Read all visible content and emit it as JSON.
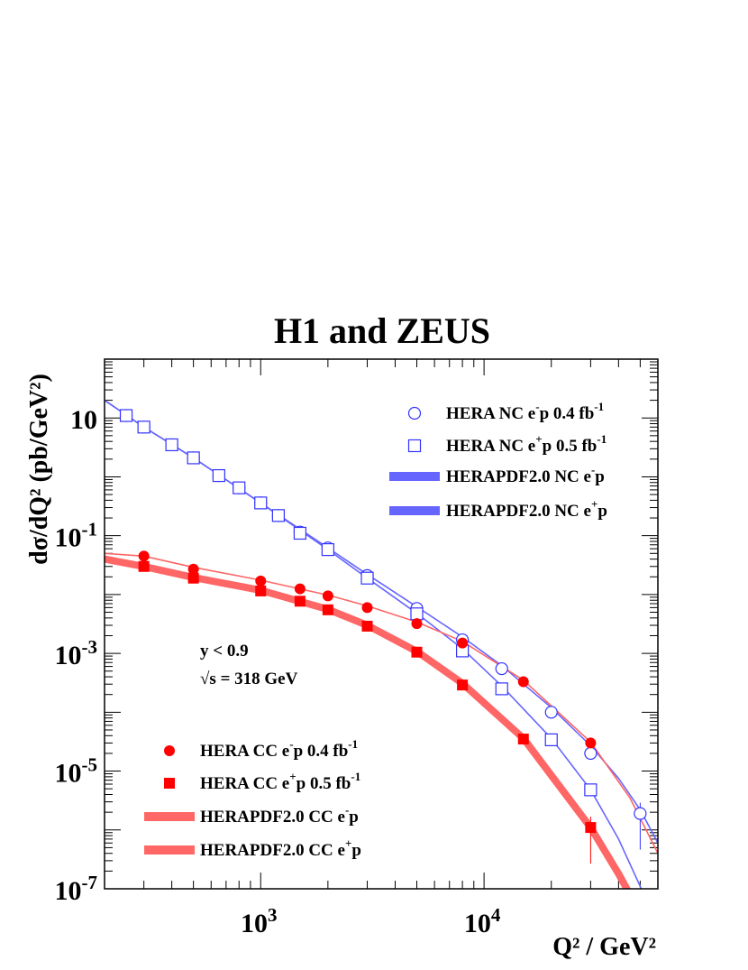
{
  "chart_data": {
    "type": "scatter",
    "title": "H1 and ZEUS",
    "xlabel": "Q² / GeV²",
    "ylabel": "dσ/dQ² (pb/GeV²)",
    "xscale": "log",
    "yscale": "log",
    "xlim": [
      200,
      60000
    ],
    "ylim": [
      1e-07,
      100
    ],
    "x_ticks": [
      {
        "value": 1000,
        "base": "10",
        "exp": "3"
      },
      {
        "value": 10000,
        "base": "10",
        "exp": "4"
      }
    ],
    "y_ticks": [
      {
        "value": 10,
        "base": "10",
        "exp": ""
      },
      {
        "value": 0.1,
        "base": "10",
        "exp": "-1"
      },
      {
        "value": 0.001,
        "base": "10",
        "exp": "-3"
      },
      {
        "value": 1e-05,
        "base": "10",
        "exp": "-5"
      },
      {
        "value": 1e-07,
        "base": "10",
        "exp": "-7"
      }
    ],
    "annotations": [
      {
        "text": "y < 0.9"
      },
      {
        "text": "√s = 318 GeV"
      }
    ],
    "legend_placement": [
      "top-right",
      "bottom-left"
    ],
    "colors": {
      "nc": "#3333ff",
      "nc_band": "#6666ff",
      "cc": "#ff0000",
      "cc_band": "#ff6666"
    },
    "series": [
      {
        "name": "HERA NC e⁻p 0.4 fb⁻¹",
        "legend": {
          "pre": "HERA NC e",
          "sup1": "-",
          "mid": "p 0.4 fb",
          "sup2": "-1"
        },
        "marker": "open-circle",
        "color": "#3333ff",
        "x": [
          250,
          300,
          400,
          500,
          650,
          800,
          1000,
          1200,
          1500,
          2000,
          3000,
          5000,
          8000,
          12000,
          20000,
          30000,
          50000
        ],
        "y": [
          11,
          7,
          3.5,
          2.1,
          1.05,
          0.65,
          0.36,
          0.22,
          0.115,
          0.062,
          0.021,
          0.0058,
          0.0017,
          0.00055,
          0.0001,
          2e-05,
          1.9e-06
        ]
      },
      {
        "name": "HERA NC e⁺p 0.5 fb⁻¹",
        "legend": {
          "pre": "HERA NC e",
          "sup1": "+",
          "mid": "p 0.5 fb",
          "sup2": "-1"
        },
        "marker": "open-square",
        "color": "#3333ff",
        "x": [
          250,
          300,
          400,
          500,
          650,
          800,
          1000,
          1200,
          1500,
          2000,
          3000,
          5000,
          8000,
          12000,
          20000,
          30000
        ],
        "y": [
          11,
          7,
          3.5,
          2.1,
          1.05,
          0.65,
          0.36,
          0.22,
          0.11,
          0.058,
          0.019,
          0.0047,
          0.0011,
          0.00025,
          3.4e-05,
          4.8e-06
        ]
      },
      {
        "name": "HERAPDF2.0 NC e⁻p",
        "legend": {
          "pre": "HERAPDF2.0 NC e",
          "sup1": "-",
          "mid": "p",
          "sup2": ""
        },
        "marker": "band",
        "color": "#6666ff",
        "x": [
          200,
          300,
          500,
          1000,
          2000,
          3000,
          5000,
          8000,
          12000,
          20000,
          30000,
          40000,
          50000,
          60000
        ],
        "y": [
          20,
          7,
          2.1,
          0.36,
          0.062,
          0.022,
          0.0062,
          0.0019,
          0.00062,
          0.00012,
          2.7e-05,
          7.5e-06,
          2.2e-06,
          6e-07
        ]
      },
      {
        "name": "HERAPDF2.0 NC e⁺p",
        "legend": {
          "pre": "HERAPDF2.0 NC e",
          "sup1": "+",
          "mid": "p",
          "sup2": ""
        },
        "marker": "band",
        "color": "#6666ff",
        "x": [
          200,
          300,
          500,
          1000,
          2000,
          3000,
          5000,
          8000,
          12000,
          20000,
          30000,
          40000,
          50000,
          55000
        ],
        "y": [
          20,
          7,
          2.1,
          0.36,
          0.058,
          0.019,
          0.0048,
          0.0012,
          0.00028,
          3.6e-05,
          4.8e-06,
          7e-07,
          1.1e-07,
          4e-08
        ]
      },
      {
        "name": "HERA CC e⁻p 0.4 fb⁻¹",
        "legend": {
          "pre": "HERA CC e",
          "sup1": "-",
          "mid": "p 0.4 fb",
          "sup2": "-1"
        },
        "marker": "filled-circle",
        "color": "#ff0000",
        "x": [
          300,
          500,
          1000,
          1500,
          2000,
          3000,
          5000,
          8000,
          15000,
          30000
        ],
        "y": [
          0.045,
          0.027,
          0.017,
          0.0125,
          0.0095,
          0.006,
          0.0032,
          0.0015,
          0.00033,
          3e-05
        ]
      },
      {
        "name": "HERA CC e⁺p 0.5 fb⁻¹",
        "legend": {
          "pre": "HERA CC e",
          "sup1": "+",
          "mid": "p 0.5 fb",
          "sup2": "-1"
        },
        "marker": "filled-square",
        "color": "#ff0000",
        "x": [
          300,
          500,
          1000,
          1500,
          2000,
          3000,
          5000,
          8000,
          15000,
          30000
        ],
        "y": [
          0.03,
          0.019,
          0.0115,
          0.0077,
          0.0055,
          0.0029,
          0.00105,
          0.00029,
          3.5e-05,
          1.1e-06
        ]
      },
      {
        "name": "HERAPDF2.0 CC e⁻p",
        "legend": {
          "pre": "HERAPDF2.0 CC e",
          "sup1": "-",
          "mid": "p",
          "sup2": ""
        },
        "marker": "band",
        "color": "#ff6666",
        "x": [
          200,
          300,
          500,
          1000,
          2000,
          3000,
          5000,
          8000,
          15000,
          30000,
          45000,
          60000
        ],
        "y": [
          0.05,
          0.045,
          0.029,
          0.0175,
          0.0098,
          0.0064,
          0.0034,
          0.0016,
          0.00035,
          3.1e-05,
          3.5e-06,
          4e-07
        ]
      },
      {
        "name": "HERAPDF2.0 CC e⁺p",
        "legend": {
          "pre": "HERAPDF2.0 CC e",
          "sup1": "+",
          "mid": "p",
          "sup2": ""
        },
        "marker": "band",
        "color": "#ff6666",
        "x": [
          200,
          300,
          500,
          1000,
          2000,
          3000,
          5000,
          8000,
          15000,
          30000,
          40000,
          45000
        ],
        "y": [
          0.04,
          0.03,
          0.0195,
          0.0118,
          0.0056,
          0.003,
          0.00108,
          0.00031,
          3.6e-05,
          1.1e-06,
          1.8e-07,
          8e-08
        ]
      }
    ]
  }
}
